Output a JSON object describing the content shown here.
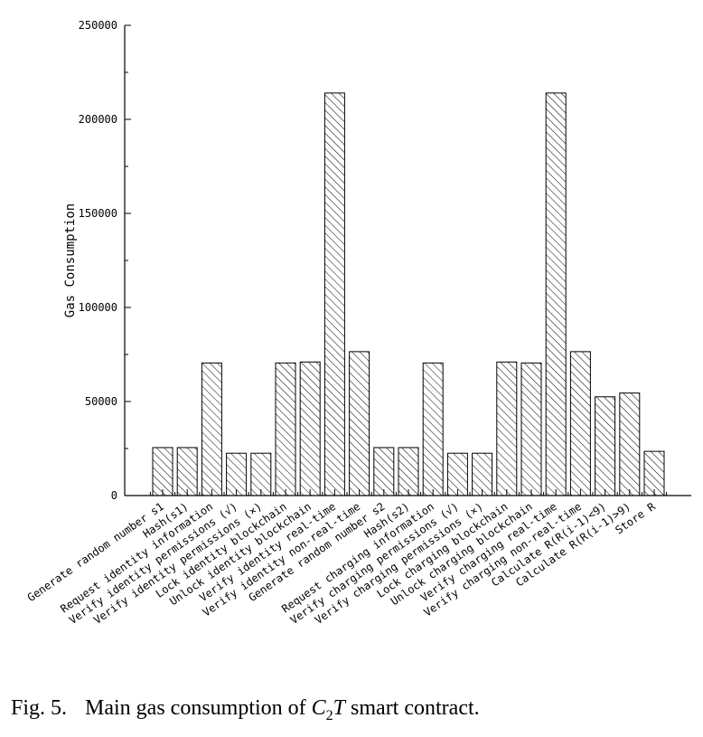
{
  "chart_data": {
    "type": "bar",
    "title": "",
    "xlabel": "",
    "ylabel": "Gas Consumption",
    "ylim": [
      0,
      250000
    ],
    "yticks": [
      0,
      50000,
      100000,
      150000,
      200000,
      250000
    ],
    "ytick_labels": [
      "0",
      "50000",
      "100000",
      "150000",
      "200000",
      "250000"
    ],
    "bar_fill": "hatched",
    "grid": false,
    "legend": "none",
    "categories": [
      "Generate random number s1",
      "Hash(s1)",
      "Request identity information",
      "Verify identity permissions (√)",
      "Verify identity permissions (×)",
      "Lock identity blockchain",
      "Unlock identity blockchain",
      "Verify identity real-time",
      "Verify identity non-real-time",
      "Generate random number s2",
      "Hash(s2)",
      "Request charging information",
      "Verify charging permissions (√)",
      "Verify charging permissions (×)",
      "Lock charging blockchain",
      "Unlock charging blockchain",
      "Verify charging real-time",
      "Verify charging non-real-time",
      "Calculate R(R(i-1)<9)",
      "Calculate R(R(i-1)>9)",
      "Store R"
    ],
    "values": [
      25500,
      25500,
      70500,
      22500,
      22500,
      70500,
      71000,
      214000,
      76500,
      25500,
      25500,
      70500,
      22500,
      22500,
      71000,
      70500,
      214000,
      76500,
      52500,
      54500,
      23500
    ]
  },
  "caption": {
    "label": "Fig. 5.",
    "text_before": "Main gas consumption of ",
    "symbol_main": "C",
    "symbol_sub": "2",
    "symbol_italic": "T",
    "text_after": " smart contract."
  }
}
